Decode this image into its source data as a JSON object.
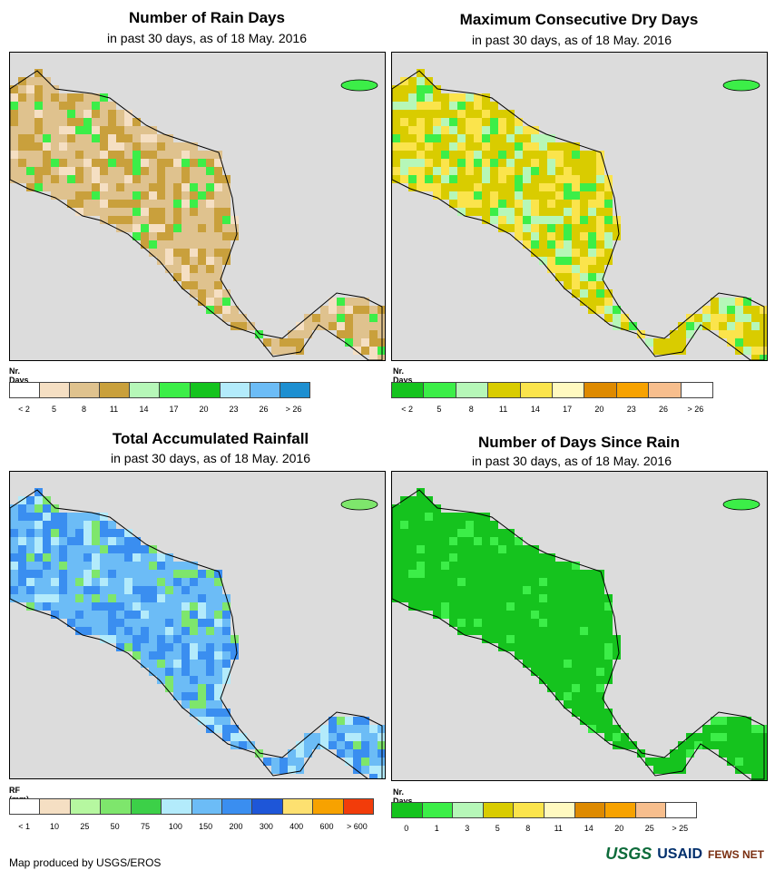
{
  "panels": [
    {
      "title": "Number of Rain Days",
      "subtitle": "in past 30 days, as of 18 May. 2016",
      "legend_title": "Nr. Days",
      "legend_colors": [
        "#ffffff",
        "#f5dfc3",
        "#dfc28e",
        "#c9a03c",
        "#b6f7b8",
        "#3cee48",
        "#15c31e",
        "#b3ebfb",
        "#6cbcf6",
        "#1d8fd1"
      ],
      "legend_ticks": [
        "< 2",
        "5",
        "8",
        "11",
        "14",
        "17",
        "20",
        "23",
        "26",
        "> 26"
      ],
      "dominant": [
        "#dfc28e",
        "#c9a03c",
        "#f5dfc3",
        "#3cee48"
      ]
    },
    {
      "title": "Maximum Consecutive Dry Days",
      "subtitle": "in past 30 days, as of 18 May. 2016",
      "legend_title": "Nr. Days",
      "legend_colors": [
        "#15c31e",
        "#3cee48",
        "#b6f7b8",
        "#d9cc00",
        "#fbe44c",
        "#fff9c0",
        "#de8a00",
        "#f7a200",
        "#f7be8d",
        "#ffffff"
      ],
      "legend_ticks": [
        "< 2",
        "5",
        "8",
        "11",
        "14",
        "17",
        "20",
        "23",
        "26",
        "> 26"
      ],
      "dominant": [
        "#d9cc00",
        "#fbe44c",
        "#b6f7b8",
        "#3cee48"
      ]
    },
    {
      "title": "Total Accumulated Rainfall",
      "subtitle": "in past 30 days, as of 18 May. 2016",
      "legend_title": "RF (mm)",
      "legend_colors": [
        "#ffffff",
        "#f5dfc3",
        "#b6f7a0",
        "#7ee66c",
        "#3cd048",
        "#b3ebfb",
        "#6cbcf6",
        "#3a8ef0",
        "#1e56d8",
        "#fde070",
        "#f7a200",
        "#f23c0a"
      ],
      "legend_ticks": [
        "< 1",
        "10",
        "25",
        "50",
        "75",
        "100",
        "150",
        "200",
        "300",
        "400",
        "600",
        "> 600"
      ],
      "dominant": [
        "#6cbcf6",
        "#3a8ef0",
        "#b3ebfb",
        "#7ee66c"
      ]
    },
    {
      "title": "Number of Days Since Rain",
      "subtitle": "in past 30 days, as of 18 May. 2016",
      "legend_title": "Nr. Days",
      "legend_colors": [
        "#15c31e",
        "#3cee48",
        "#b6f7b8",
        "#d9cc00",
        "#fbe44c",
        "#fff9c0",
        "#de8a00",
        "#f7a200",
        "#f7be8d",
        "#ffffff"
      ],
      "legend_ticks": [
        "0",
        "1",
        "3",
        "5",
        "8",
        "11",
        "14",
        "20",
        "25",
        "> 25"
      ],
      "dominant": [
        "#15c31e",
        "#15c31e",
        "#15c31e",
        "#3cee48"
      ]
    }
  ],
  "footer": "Map produced by USGS/EROS",
  "logos": {
    "usgs": "USGS",
    "usaid": "USAID",
    "fews": "FEWS NET"
  }
}
